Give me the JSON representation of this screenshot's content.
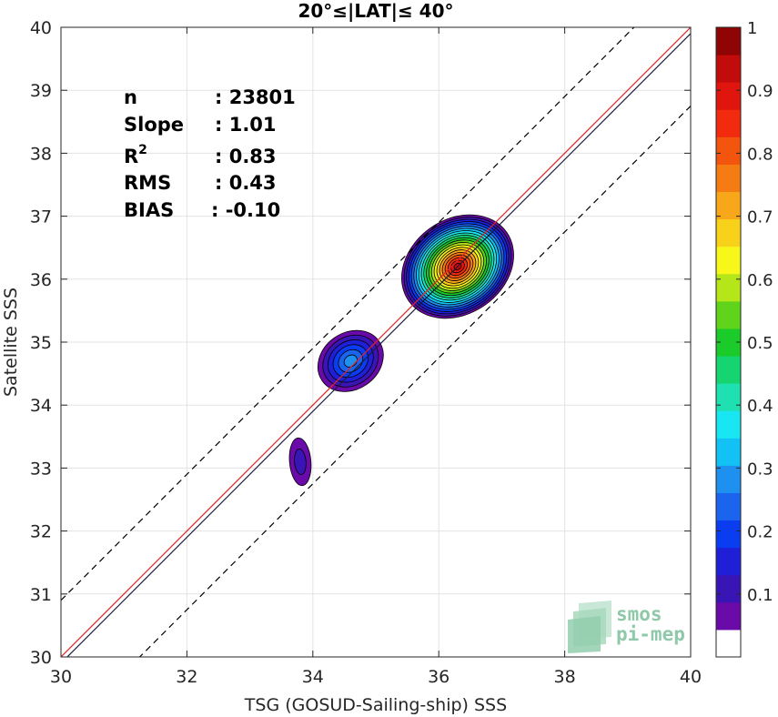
{
  "chart_data": {
    "type": "contour",
    "title": "20°≤|LAT|≤ 40°",
    "xlabel": "TSG (GOSUD-Sailing-ship) SSS",
    "ylabel": "Satellite SSS",
    "xlim": [
      30,
      40
    ],
    "ylim": [
      30,
      40
    ],
    "x_ticks": [
      "30",
      "32",
      "34",
      "36",
      "38",
      "40"
    ],
    "y_ticks": [
      "30",
      "31",
      "32",
      "33",
      "34",
      "35",
      "36",
      "37",
      "38",
      "39",
      "40"
    ],
    "grid": true,
    "stats": [
      {
        "label": "n",
        "value": ": 23801"
      },
      {
        "label": "Slope",
        "value": ": 1.01"
      },
      {
        "label": "R",
        "sup": "2",
        "value": ": 0.83"
      },
      {
        "label": "RMS",
        "value": ": 0.43"
      },
      {
        "label": "BIAS",
        "value": ": -0.10"
      }
    ],
    "lines": [
      {
        "kind": "identity",
        "color": "#e0262b",
        "style": "solid",
        "intercept": 0
      },
      {
        "kind": "regression",
        "color": "#1b1b3a",
        "style": "solid",
        "intercept": -0.1
      },
      {
        "kind": "plus-1",
        "color": "#000000",
        "style": "dashed",
        "intercept": 0.9
      },
      {
        "kind": "minus-1",
        "color": "#000000",
        "style": "dashed",
        "intercept": -1.25
      }
    ],
    "density_peaks": [
      {
        "x": 36.3,
        "y": 36.2,
        "peak": 0.95
      },
      {
        "x": 34.6,
        "y": 34.7,
        "peak": 0.25
      },
      {
        "x": 33.8,
        "y": 33.1,
        "peak": 0.1
      }
    ],
    "colorbar": {
      "ticks": [
        "0.1",
        "0.2",
        "0.3",
        "0.4",
        "0.5",
        "0.6",
        "0.7",
        "0.8",
        "0.9",
        "1"
      ],
      "levels": [
        "#ffffff",
        "#6a0aa8",
        "#3a15b5",
        "#1f1fd8",
        "#0a3cf0",
        "#1a64ee",
        "#1e90f0",
        "#12c2f5",
        "#19e6f3",
        "#1fe0b0",
        "#16d470",
        "#1acb2a",
        "#5fd41a",
        "#b4e61a",
        "#f7f71a",
        "#f8d21a",
        "#f8a71a",
        "#f47c12",
        "#f3550e",
        "#f22a0e",
        "#e0160e",
        "#c20b0b",
        "#8f0404"
      ]
    }
  },
  "logo": {
    "line1": "smos",
    "line2": "pi-mep"
  }
}
